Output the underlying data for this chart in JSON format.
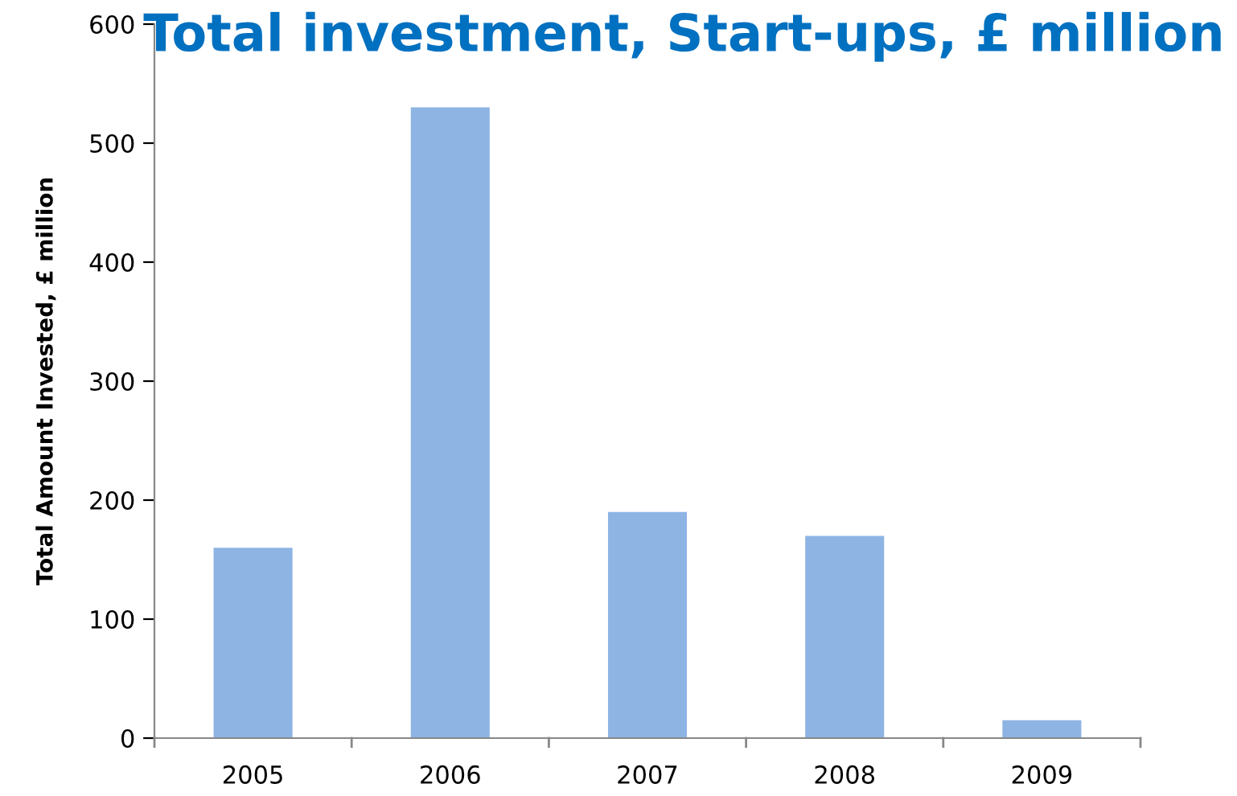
{
  "chart_data": {
    "type": "bar",
    "title": "Total investment, Start-ups, £ million",
    "ylabel": "Total Amount Invested, £ million",
    "categories": [
      "2005",
      "2006",
      "2007",
      "2008",
      "2009"
    ],
    "values": [
      160,
      530,
      190,
      170,
      15
    ],
    "color": "#8eb4e3",
    "ylim": [
      0,
      600
    ],
    "yticks": [
      0,
      100,
      200,
      300,
      400,
      500,
      600
    ],
    "grid": false,
    "legend": false
  }
}
